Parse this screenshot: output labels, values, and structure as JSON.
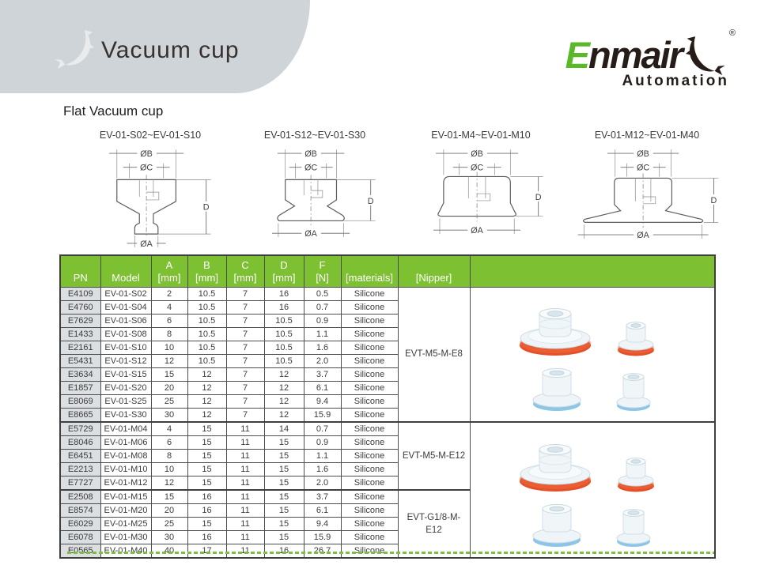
{
  "header": {
    "title": "Vacuum cup",
    "section": "Flat Vacuum cup"
  },
  "logo": {
    "brand_first_letter": "E",
    "brand_rest": "nmair",
    "registered": "®",
    "subtitle": "Automation"
  },
  "colors": {
    "banner_gray": "#cfd4d8",
    "brand_green": "#5cb82b",
    "brand_dark": "#261d18",
    "table_header_green": "#7dc032",
    "pn_cell_gray": "#dbdfe2",
    "dashed_rule_green": "#7bc13c",
    "cup_orange": "#e5502a",
    "cup_blue": "#8cc5e6"
  },
  "diagrams": [
    {
      "title": "EV-01-S02~EV-01-S10",
      "dim_b": "ØB",
      "dim_c": "ØC",
      "dim_d": "D",
      "dim_a": "ØA"
    },
    {
      "title": "EV-01-S12~EV-01-S30",
      "dim_b": "ØB",
      "dim_c": "ØC",
      "dim_d": "D",
      "dim_a": "ØA"
    },
    {
      "title": "EV-01-M4~EV-01-M10",
      "dim_b": "ØB",
      "dim_c": "ØC",
      "dim_d": "D",
      "dim_a": "ØA"
    },
    {
      "title": "EV-01-M12~EV-01-M40",
      "dim_b": "ØB",
      "dim_c": "ØC",
      "dim_d": "D",
      "dim_a": "ØA"
    }
  ],
  "table": {
    "headers": [
      {
        "top": "",
        "bottom": "PN"
      },
      {
        "top": "",
        "bottom": "Model"
      },
      {
        "top": "A",
        "bottom": "[mm]"
      },
      {
        "top": "B",
        "bottom": "[mm]"
      },
      {
        "top": "C",
        "bottom": "[mm]"
      },
      {
        "top": "D",
        "bottom": "[mm]"
      },
      {
        "top": "F",
        "bottom": "[N]"
      },
      {
        "top": "",
        "bottom": "[materials]"
      },
      {
        "top": "",
        "bottom": "[Nipper]"
      },
      {
        "top": "",
        "bottom": ""
      }
    ],
    "rows": [
      {
        "pn": "E4109",
        "model": "EV-01-S02",
        "a": "2",
        "b": "10.5",
        "c": "7",
        "d": "16",
        "f": "0.5",
        "material": "Silicone"
      },
      {
        "pn": "E4760",
        "model": "EV-01-S04",
        "a": "4",
        "b": "10.5",
        "c": "7",
        "d": "16",
        "f": "0.7",
        "material": "Silicone"
      },
      {
        "pn": "E7629",
        "model": "EV-01-S06",
        "a": "6",
        "b": "10.5",
        "c": "7",
        "d": "10.5",
        "f": "0.9",
        "material": "Silicone"
      },
      {
        "pn": "E1433",
        "model": "EV-01-S08",
        "a": "8",
        "b": "10.5",
        "c": "7",
        "d": "10.5",
        "f": "1.1",
        "material": "Silicone"
      },
      {
        "pn": "E2161",
        "model": "EV-01-S10",
        "a": "10",
        "b": "10.5",
        "c": "7",
        "d": "10.5",
        "f": "1.6",
        "material": "Silicone"
      },
      {
        "pn": "E5431",
        "model": "EV-01-S12",
        "a": "12",
        "b": "10.5",
        "c": "7",
        "d": "10.5",
        "f": "2.0",
        "material": "Silicone"
      },
      {
        "pn": "E3634",
        "model": "EV-01-S15",
        "a": "15",
        "b": "12",
        "c": "7",
        "d": "12",
        "f": "3.7",
        "material": "Silicone"
      },
      {
        "pn": "E1857",
        "model": "EV-01-S20",
        "a": "20",
        "b": "12",
        "c": "7",
        "d": "12",
        "f": "6.1",
        "material": "Silicone"
      },
      {
        "pn": "E8069",
        "model": "EV-01-S25",
        "a": "25",
        "b": "12",
        "c": "7",
        "d": "12",
        "f": "9.4",
        "material": "Silicone"
      },
      {
        "pn": "E8665",
        "model": "EV-01-S30",
        "a": "30",
        "b": "12",
        "c": "7",
        "d": "12",
        "f": "15.9",
        "material": "Silicone"
      },
      {
        "pn": "E5729",
        "model": "EV-01-M04",
        "a": "4",
        "b": "15",
        "c": "11",
        "d": "14",
        "f": "0.7",
        "material": "Silicone"
      },
      {
        "pn": "E8046",
        "model": "EV-01-M06",
        "a": "6",
        "b": "15",
        "c": "11",
        "d": "15",
        "f": "0.9",
        "material": "Silicone"
      },
      {
        "pn": "E6451",
        "model": "EV-01-M08",
        "a": "8",
        "b": "15",
        "c": "11",
        "d": "15",
        "f": "1.1",
        "material": "Silicone"
      },
      {
        "pn": "E2213",
        "model": "EV-01-M10",
        "a": "10",
        "b": "15",
        "c": "11",
        "d": "15",
        "f": "1.6",
        "material": "Silicone"
      },
      {
        "pn": "E7727",
        "model": "EV-01-M12",
        "a": "12",
        "b": "15",
        "c": "11",
        "d": "15",
        "f": "2.0",
        "material": "Silicone"
      },
      {
        "pn": "E2508",
        "model": "EV-01-M15",
        "a": "15",
        "b": "16",
        "c": "11",
        "d": "15",
        "f": "3.7",
        "material": "Silicone"
      },
      {
        "pn": "E8574",
        "model": "EV-01-M20",
        "a": "20",
        "b": "16",
        "c": "11",
        "d": "15",
        "f": "6.1",
        "material": "Silicone"
      },
      {
        "pn": "E6029",
        "model": "EV-01-M25",
        "a": "25",
        "b": "15",
        "c": "11",
        "d": "15",
        "f": "9.4",
        "material": "Silicone"
      },
      {
        "pn": "E6078",
        "model": "EV-01-M30",
        "a": "30",
        "b": "16",
        "c": "11",
        "d": "15",
        "f": "15.9",
        "material": "Silicone"
      },
      {
        "pn": "E0565",
        "model": "EV-01-M40",
        "a": "40",
        "b": "17",
        "c": "11",
        "d": "16",
        "f": "26.7",
        "material": "Silicone"
      }
    ],
    "nipper_groups": [
      {
        "label": "EVT-M5-M-E8",
        "start": 0,
        "span": 10
      },
      {
        "label": "EVT-M5-M-E12",
        "start": 10,
        "span": 5
      },
      {
        "label": "EVT-G1/8-M-E12",
        "start": 15,
        "span": 5
      }
    ],
    "image_groups": [
      {
        "start": 0,
        "span": 10
      },
      {
        "start": 10,
        "span": 10
      }
    ]
  }
}
